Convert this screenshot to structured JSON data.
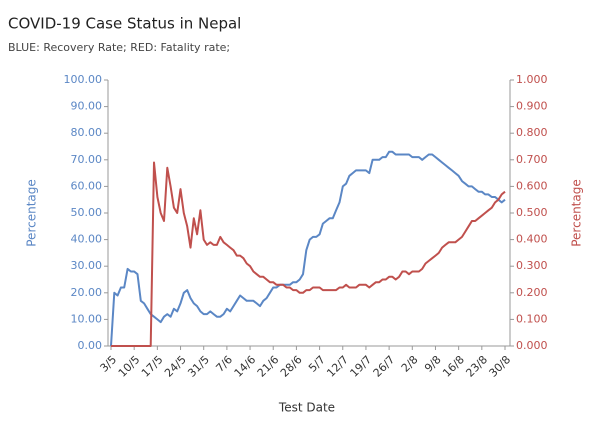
{
  "chart_data": {
    "type": "line",
    "title": "COVID-19 Case Status in Nepal",
    "subtitle": "BLUE: Recovery Rate; RED: Fatality rate;",
    "xlabel": "Test Date",
    "ylabel": "Percentage",
    "y2label": "Percentage",
    "categories": [
      "3/5",
      null,
      null,
      null,
      null,
      null,
      null,
      "10/5",
      null,
      null,
      null,
      null,
      null,
      null,
      "17/5",
      null,
      null,
      null,
      null,
      null,
      null,
      "24/5",
      null,
      null,
      null,
      null,
      null,
      null,
      "31/5",
      null,
      null,
      null,
      null,
      null,
      null,
      "7/6",
      null,
      null,
      null,
      null,
      null,
      null,
      "14/6",
      null,
      null,
      null,
      null,
      null,
      null,
      "21/6",
      null,
      null,
      null,
      null,
      null,
      null,
      "28/6",
      null,
      null,
      null,
      null,
      null,
      null,
      "5/7",
      null,
      null,
      null,
      null,
      null,
      null,
      "12/7",
      null,
      null,
      null,
      null,
      null,
      null,
      "19/7",
      null,
      null,
      null,
      null,
      null,
      null,
      "26/7",
      null,
      null,
      null,
      null,
      null,
      null,
      "2/8",
      null,
      null,
      null,
      null,
      null,
      null,
      "9/8",
      null,
      null,
      null,
      null,
      null,
      null,
      "16/8",
      null,
      null,
      null,
      null,
      null,
      null,
      "23/8",
      null,
      null,
      null,
      null,
      null,
      null,
      "30/8"
    ],
    "series": [
      {
        "name": "Recovery Rate",
        "color": "#5b87c5",
        "axis": "y",
        "values": [
          0,
          20,
          19,
          22,
          22,
          29,
          28,
          28,
          27,
          17,
          16,
          14,
          12,
          11,
          10,
          9,
          11,
          12,
          11,
          14,
          13,
          16,
          20,
          21,
          18,
          16,
          15,
          13,
          12,
          12,
          13,
          12,
          11,
          11,
          12,
          14,
          13,
          15,
          17,
          19,
          18,
          17,
          17,
          17,
          16,
          15,
          17,
          18,
          20,
          22,
          22,
          23,
          23,
          23,
          23,
          24,
          24,
          25,
          27,
          36,
          40,
          41,
          41,
          42,
          46,
          47,
          48,
          48,
          51,
          54,
          60,
          61,
          64,
          65,
          66,
          66,
          66,
          66,
          65,
          70,
          70,
          70,
          71,
          71,
          73,
          73,
          72,
          72,
          72,
          72,
          72,
          71,
          71,
          71,
          70,
          71,
          72,
          72,
          71,
          70,
          69,
          68,
          67,
          66,
          65,
          64,
          62,
          61,
          60,
          60,
          59,
          58,
          58,
          57,
          57,
          56,
          56,
          55,
          54,
          55
        ]
      },
      {
        "name": "Fatality rate",
        "color": "#c0504d",
        "axis": "y2",
        "values": [
          0,
          0,
          0,
          0,
          0,
          0,
          0,
          0,
          0,
          0,
          0,
          0,
          0,
          0.69,
          0.56,
          0.5,
          0.47,
          0.67,
          0.6,
          0.52,
          0.5,
          0.59,
          0.5,
          0.45,
          0.37,
          0.48,
          0.42,
          0.51,
          0.4,
          0.38,
          0.39,
          0.38,
          0.38,
          0.41,
          0.39,
          0.38,
          0.37,
          0.36,
          0.34,
          0.34,
          0.33,
          0.31,
          0.3,
          0.28,
          0.27,
          0.26,
          0.26,
          0.25,
          0.24,
          0.24,
          0.23,
          0.23,
          0.23,
          0.22,
          0.22,
          0.21,
          0.21,
          0.2,
          0.2,
          0.21,
          0.21,
          0.22,
          0.22,
          0.22,
          0.21,
          0.21,
          0.21,
          0.21,
          0.21,
          0.22,
          0.22,
          0.23,
          0.22,
          0.22,
          0.22,
          0.23,
          0.23,
          0.23,
          0.22,
          0.23,
          0.24,
          0.24,
          0.25,
          0.25,
          0.26,
          0.26,
          0.25,
          0.26,
          0.28,
          0.28,
          0.27,
          0.28,
          0.28,
          0.28,
          0.29,
          0.31,
          0.32,
          0.33,
          0.34,
          0.35,
          0.37,
          0.38,
          0.39,
          0.39,
          0.39,
          0.4,
          0.41,
          0.43,
          0.45,
          0.47,
          0.47,
          0.48,
          0.49,
          0.5,
          0.51,
          0.52,
          0.54,
          0.55,
          0.57,
          0.58
        ]
      }
    ],
    "ylim": [
      0,
      100
    ],
    "yticks": [
      {
        "value": 0,
        "label": "0.00"
      },
      {
        "value": 10,
        "label": "10.00"
      },
      {
        "value": 20,
        "label": "20.00"
      },
      {
        "value": 30,
        "label": "30.00"
      },
      {
        "value": 40,
        "label": "40.00"
      },
      {
        "value": 50,
        "label": "50.00"
      },
      {
        "value": 60,
        "label": "60.00"
      },
      {
        "value": 70,
        "label": "70.00"
      },
      {
        "value": 80,
        "label": "80.00"
      },
      {
        "value": 90,
        "label": "90.00"
      },
      {
        "value": 100,
        "label": "100.00"
      }
    ],
    "y2lim": [
      0,
      1
    ],
    "y2ticks": [
      {
        "value": 0,
        "label": "0.000"
      },
      {
        "value": 0.1,
        "label": "0.100"
      },
      {
        "value": 0.2,
        "label": "0.200"
      },
      {
        "value": 0.3,
        "label": "0.300"
      },
      {
        "value": 0.4,
        "label": "0.400"
      },
      {
        "value": 0.5,
        "label": "0.500"
      },
      {
        "value": 0.6,
        "label": "0.600"
      },
      {
        "value": 0.7,
        "label": "0.700"
      },
      {
        "value": 0.8,
        "label": "0.800"
      },
      {
        "value": 0.9,
        "label": "0.900"
      },
      {
        "value": 1,
        "label": "1.000"
      }
    ],
    "grid": false
  }
}
